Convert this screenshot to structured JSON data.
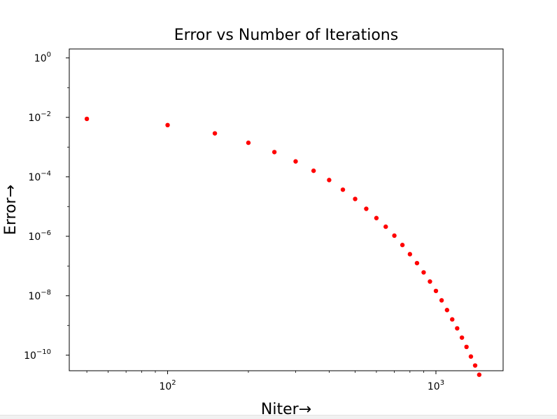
{
  "chart_data": {
    "type": "scatter",
    "title": "Error vs Number of Iterations",
    "xlabel": "Niter→",
    "ylabel": "Error→",
    "xscale": "log",
    "yscale": "log",
    "xlim": [
      43,
      1780
    ],
    "ylim": [
      3e-11,
      2
    ],
    "xticks": [
      {
        "value": 100,
        "base": "10",
        "exp": "2"
      },
      {
        "value": 1000,
        "base": "10",
        "exp": "3"
      }
    ],
    "yticks": [
      {
        "value": 1,
        "base": "10",
        "exp": "0"
      },
      {
        "value": 0.01,
        "base": "10",
        "exp": "−2"
      },
      {
        "value": 0.0001,
        "base": "10",
        "exp": "−4"
      },
      {
        "value": 1e-06,
        "base": "10",
        "exp": "−6"
      },
      {
        "value": 1e-08,
        "base": "10",
        "exp": "−8"
      },
      {
        "value": 1e-10,
        "base": "10",
        "exp": "−10"
      }
    ],
    "grid": false,
    "series": [
      {
        "color": "#ff0000",
        "x": [
          50,
          100,
          150,
          200,
          250,
          300,
          350,
          400,
          450,
          500,
          550,
          600,
          650,
          700,
          750,
          800,
          850,
          900,
          950,
          1000,
          1050,
          1100,
          1150,
          1200,
          1250,
          1300,
          1350,
          1400,
          1450
        ],
        "y": [
          0.0089,
          0.0055,
          0.0029,
          0.0014,
          0.00068,
          0.00033,
          0.00016,
          7.8e-05,
          3.7e-05,
          1.8e-05,
          8.4e-06,
          4.1e-06,
          2.1e-06,
          1.05e-06,
          5.1e-07,
          2.5e-07,
          1.25e-07,
          6.1e-08,
          3e-08,
          1.45e-08,
          7e-09,
          3.3e-09,
          1.6e-09,
          8e-10,
          3.9e-10,
          1.9e-10,
          9e-11,
          4.5e-11,
          2.2e-11
        ]
      }
    ]
  }
}
